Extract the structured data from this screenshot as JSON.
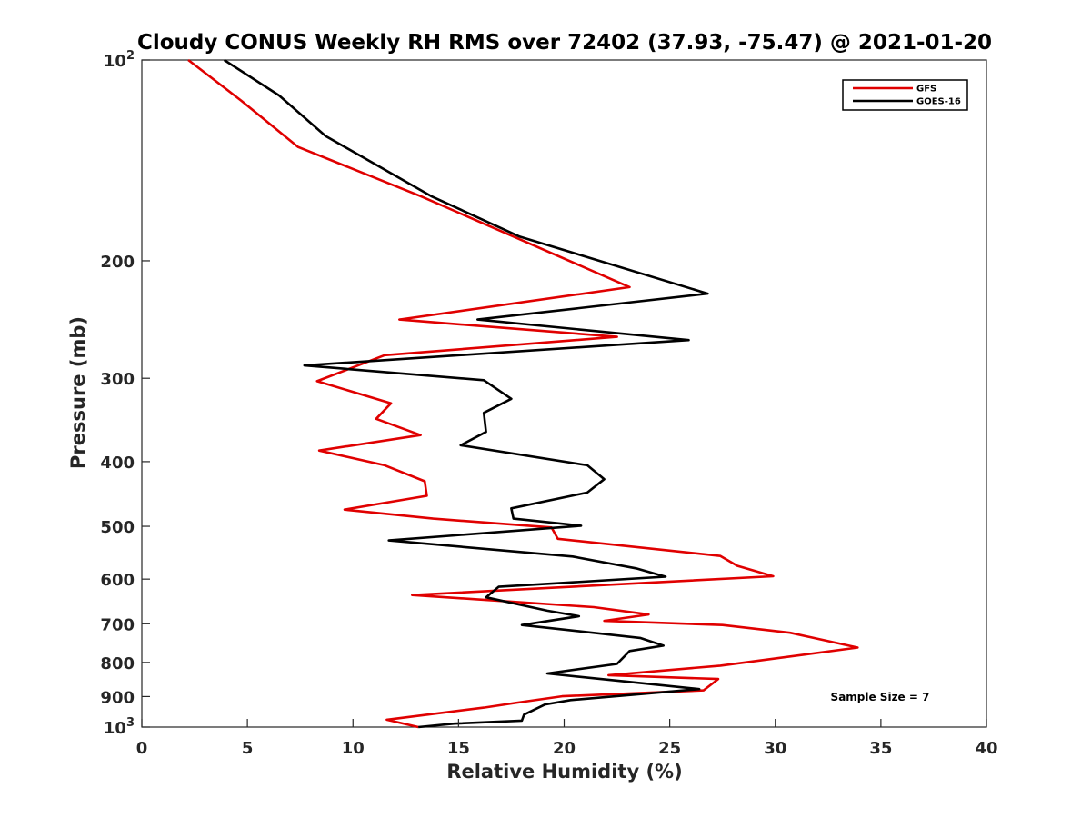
{
  "chart_data": {
    "type": "line",
    "title": "Cloudy CONUS Weekly RH RMS over 72402 (37.93, -75.47) @ 2021-01-20",
    "xlabel": "Relative Humidity (%)",
    "ylabel": "Pressure (mb)",
    "xlim": [
      0,
      40
    ],
    "ylim": [
      1000,
      100
    ],
    "yscale": "log",
    "y_reversed": true,
    "x_ticks": [
      0,
      5,
      10,
      15,
      20,
      25,
      30,
      35,
      40
    ],
    "y_ticks": [
      100,
      200,
      300,
      400,
      500,
      600,
      700,
      800,
      900,
      1000
    ],
    "y_tick_labels": [
      "10^2",
      "200",
      "300",
      "400",
      "500",
      "600",
      "700",
      "800",
      "900",
      "10^3"
    ],
    "grid": false,
    "legend_position": "top-right",
    "annotation": "Sample Size = 7",
    "series": [
      {
        "name": "GFS",
        "color": "#e00000",
        "points": [
          [
            2.2,
            100
          ],
          [
            4.7,
            115
          ],
          [
            7.4,
            135
          ],
          [
            13.2,
            160
          ],
          [
            23.1,
            219
          ],
          [
            12.2,
            245
          ],
          [
            22.5,
            260
          ],
          [
            11.5,
            277
          ],
          [
            8.3,
            303
          ],
          [
            11.8,
            327
          ],
          [
            11.1,
            345
          ],
          [
            13.2,
            365
          ],
          [
            8.4,
            385
          ],
          [
            11.5,
            405
          ],
          [
            13.4,
            428
          ],
          [
            13.5,
            450
          ],
          [
            9.6,
            472
          ],
          [
            13.8,
            487
          ],
          [
            19.4,
            502
          ],
          [
            19.7,
            522
          ],
          [
            27.4,
            554
          ],
          [
            28.2,
            573
          ],
          [
            29.9,
            594
          ],
          [
            12.8,
            634
          ],
          [
            21.4,
            661
          ],
          [
            24.0,
            678
          ],
          [
            21.9,
            693
          ],
          [
            27.5,
            703
          ],
          [
            30.7,
            722
          ],
          [
            33.9,
            760
          ],
          [
            27.4,
            809
          ],
          [
            22.1,
            836
          ],
          [
            27.3,
            847
          ],
          [
            26.6,
            881
          ],
          [
            19.9,
            899
          ],
          [
            17.7,
            920
          ],
          [
            16.2,
            935
          ],
          [
            11.6,
            975
          ],
          [
            13.1,
            1000
          ]
        ]
      },
      {
        "name": "GOES-16",
        "color": "#000000",
        "points": [
          [
            3.9,
            100
          ],
          [
            6.5,
            113
          ],
          [
            8.7,
            130
          ],
          [
            13.7,
            160
          ],
          [
            17.9,
            184
          ],
          [
            26.8,
            224
          ],
          [
            15.9,
            245
          ],
          [
            25.9,
            263
          ],
          [
            7.7,
            287
          ],
          [
            16.2,
            302
          ],
          [
            17.5,
            322
          ],
          [
            16.2,
            338
          ],
          [
            16.3,
            361
          ],
          [
            15.1,
            378
          ],
          [
            21.1,
            405
          ],
          [
            21.9,
            425
          ],
          [
            21.1,
            445
          ],
          [
            17.5,
            470
          ],
          [
            17.6,
            487
          ],
          [
            20.8,
            499
          ],
          [
            11.7,
            525
          ],
          [
            20.4,
            555
          ],
          [
            23.4,
            578
          ],
          [
            24.8,
            595
          ],
          [
            16.9,
            616
          ],
          [
            16.3,
            639
          ],
          [
            19.2,
            669
          ],
          [
            20.7,
            682
          ],
          [
            18.0,
            703
          ],
          [
            23.6,
            735
          ],
          [
            24.7,
            755
          ],
          [
            23.1,
            769
          ],
          [
            22.5,
            804
          ],
          [
            19.2,
            831
          ],
          [
            23.0,
            855
          ],
          [
            26.4,
            877
          ],
          [
            20.3,
            911
          ],
          [
            19.1,
            925
          ],
          [
            18.1,
            958
          ],
          [
            18.0,
            978
          ],
          [
            14.8,
            988
          ],
          [
            13.1,
            1000
          ]
        ]
      }
    ]
  }
}
